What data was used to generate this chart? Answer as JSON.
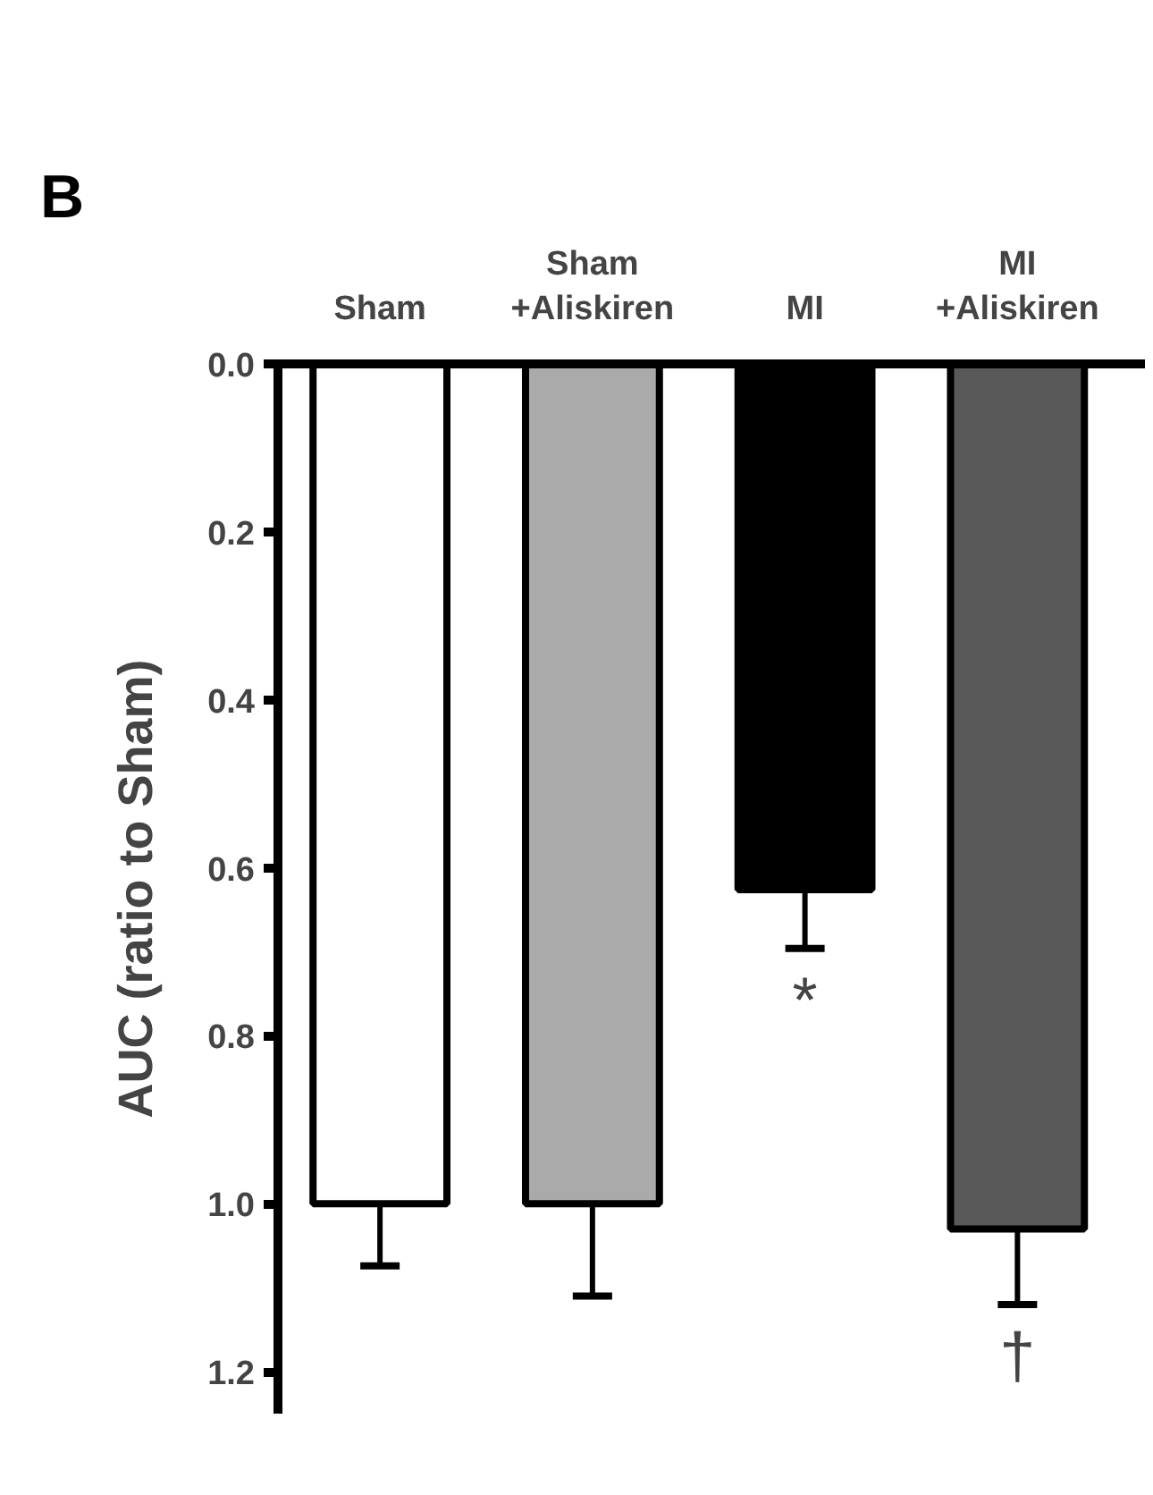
{
  "chart_data": {
    "type": "bar",
    "ylabel": "AUC (ratio to Sham)",
    "categories": [
      "Sham",
      "Sham\n+Aliskiren",
      "MI",
      "MI\n+Aliskiren"
    ],
    "values": [
      1.0,
      1.0,
      0.626,
      1.03
    ],
    "colors": [
      "#ffffff",
      "#aaaaaa",
      "#000000",
      "#595959"
    ],
    "errors": [
      [
        1.0,
        1.074
      ],
      [
        1.0,
        1.11
      ],
      [
        0.626,
        0.696
      ],
      [
        1.03,
        1.12
      ]
    ],
    "ylim": [
      1.25,
      0
    ],
    "yticks": [
      {
        "value": 0,
        "label": "0.0"
      },
      0.2,
      0.4,
      0.6,
      0.8,
      {
        "value": 1.0,
        "label": "1.0"
      },
      1.2
    ],
    "grid": false,
    "annotations": [
      "B",
      "*",
      "†"
    ]
  }
}
